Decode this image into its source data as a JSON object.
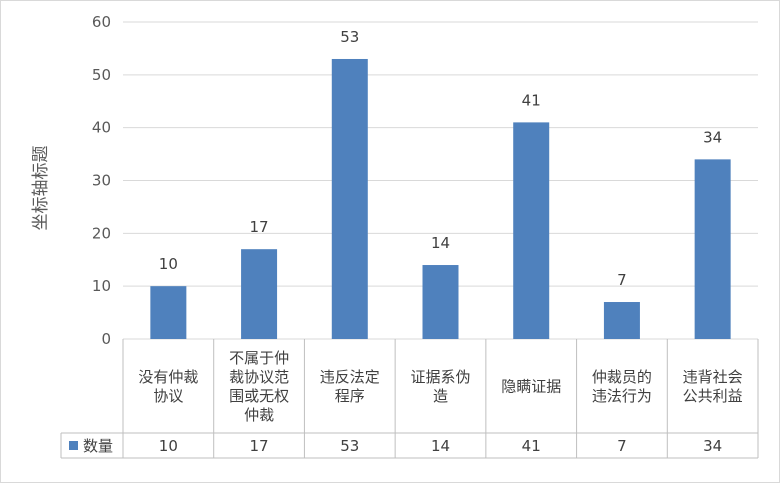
{
  "chart_data": {
    "type": "bar",
    "ylabel": "坐标轴标题",
    "ylim": [
      0,
      60
    ],
    "yticks": [
      0,
      10,
      20,
      30,
      40,
      50,
      60
    ],
    "grid": true,
    "legend_placement": "data-table",
    "categories": [
      [
        "没有仲裁",
        "协议"
      ],
      [
        "不属于仲",
        "裁协议范",
        "围或无权",
        "仲裁"
      ],
      [
        "违反法定",
        "程序"
      ],
      [
        "证据系伪",
        "造"
      ],
      [
        "隐瞒证据"
      ],
      [
        "仲裁员的",
        "违法行为"
      ],
      [
        "违背社会",
        "公共利益"
      ]
    ],
    "series": [
      {
        "name": "数量",
        "values": [
          10,
          17,
          53,
          14,
          41,
          7,
          34
        ],
        "color": "#4f81bd"
      }
    ]
  }
}
